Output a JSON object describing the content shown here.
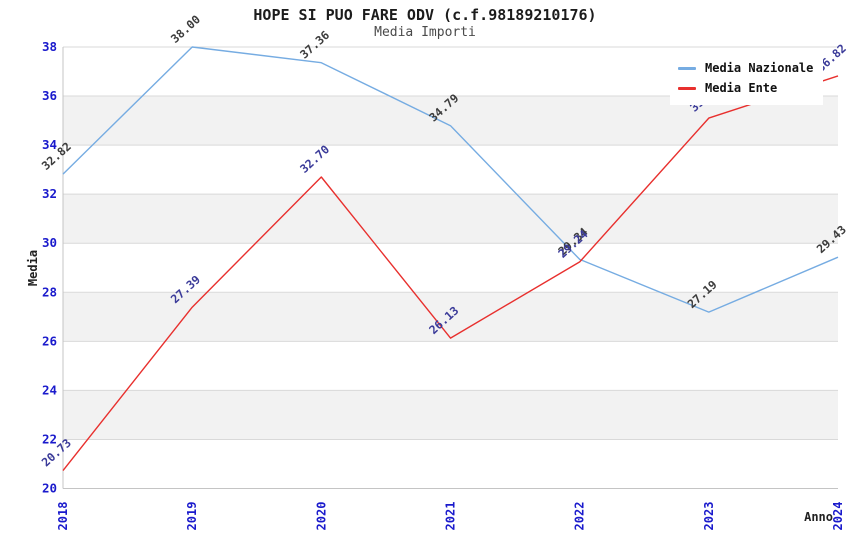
{
  "header": {
    "title": "HOPE SI PUO FARE ODV (c.f.98189210176)",
    "subtitle": "Media Importi"
  },
  "chart_data": {
    "type": "line",
    "title": "HOPE SI PUO FARE ODV (c.f.98189210176)",
    "subtitle": "Media Importi",
    "xlabel": "Anno",
    "ylabel": "Media",
    "x": [
      2018,
      2019,
      2020,
      2021,
      2022,
      2023,
      2024
    ],
    "x_tick_labels": [
      "2018",
      "2019",
      "2020",
      "2021",
      "2022",
      "2023",
      "2024"
    ],
    "ylim": [
      20,
      38
    ],
    "y_ticks": [
      20,
      22,
      24,
      26,
      28,
      30,
      32,
      34,
      36,
      38
    ],
    "grid": "horizontal gridlines with alternating gray bands every 2 units",
    "legend_position": "top-right",
    "series": [
      {
        "name": "Media Nazionale",
        "color": "#76ace2",
        "label_color": "#3c3c3c",
        "values": [
          32.82,
          38.0,
          37.36,
          34.79,
          29.34,
          27.19,
          29.43
        ],
        "point_labels": [
          "32.82",
          "38.00",
          "37.36",
          "34.79",
          "29.34",
          "27.19",
          "29.43"
        ]
      },
      {
        "name": "Media Ente",
        "color": "#e8302e",
        "label_color": "#3b3b99",
        "values": [
          20.73,
          27.39,
          32.7,
          26.13,
          29.24,
          35.1,
          36.82
        ],
        "point_labels": [
          "20.73",
          "27.39",
          "32.70",
          "26.13",
          "29.24",
          "35.1",
          "36.82"
        ],
        "note_2023_label": "partially hidden behind legend"
      }
    ],
    "style": {
      "tick_color": "#1a1acc",
      "band_color": "#f2f2f2",
      "grid_color": "#d9d9d9",
      "axis_color": "#c4c4c4"
    }
  }
}
